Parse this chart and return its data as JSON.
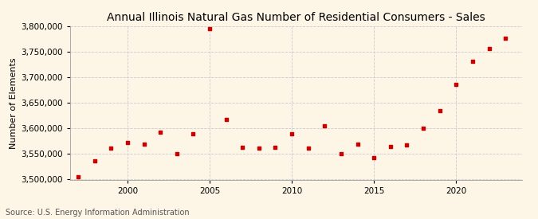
{
  "title": "Annual Illinois Natural Gas Number of Residential Consumers - Sales",
  "ylabel": "Number of Elements",
  "source": "Source: U.S. Energy Information Administration",
  "background_color": "#fdf5e6",
  "dot_color": "#cc0000",
  "years": [
    1997,
    1998,
    1999,
    2000,
    2001,
    2002,
    2003,
    2004,
    2005,
    2006,
    2007,
    2008,
    2009,
    2010,
    2011,
    2012,
    2013,
    2014,
    2015,
    2016,
    2017,
    2018,
    2019,
    2020,
    2021,
    2022,
    2023
  ],
  "values": [
    3505000,
    3537000,
    3562000,
    3572000,
    3570000,
    3593000,
    3550000,
    3590000,
    3795000,
    3618000,
    3563000,
    3562000,
    3563000,
    3590000,
    3562000,
    3605000,
    3550000,
    3570000,
    3543000,
    3565000,
    3568000,
    3600000,
    3635000,
    3687000,
    3732000,
    3757000,
    3777000
  ],
  "ylim": [
    3500000,
    3800000
  ],
  "yticks": [
    3500000,
    3550000,
    3600000,
    3650000,
    3700000,
    3750000,
    3800000
  ],
  "xticks": [
    2000,
    2005,
    2010,
    2015,
    2020
  ],
  "xlim": [
    1996.5,
    2024
  ],
  "grid_color": "#cccccc",
  "title_fontsize": 10,
  "label_fontsize": 8,
  "tick_fontsize": 7.5,
  "source_fontsize": 7
}
